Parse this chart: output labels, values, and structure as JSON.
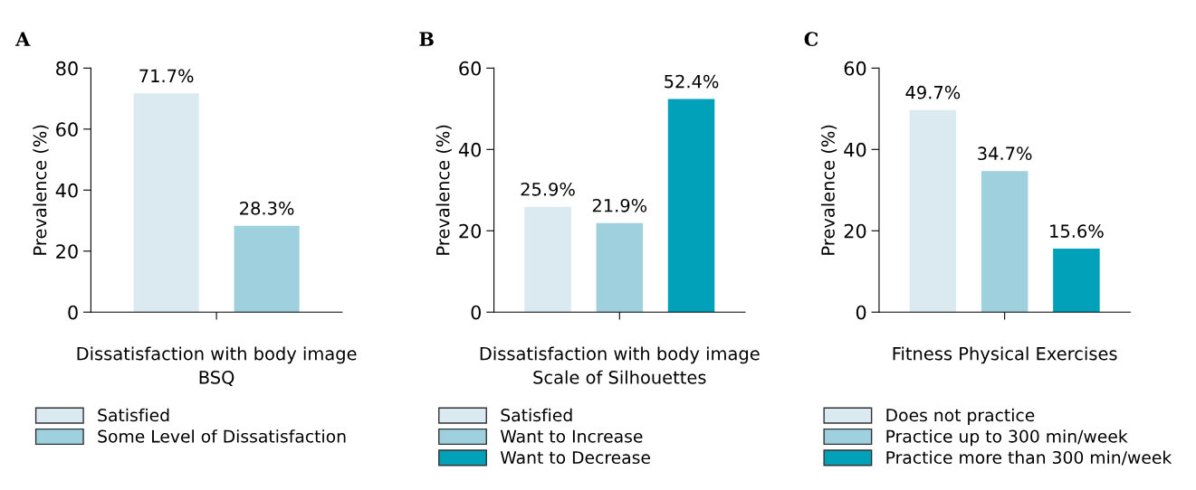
{
  "chart_data": [
    {
      "type": "bar",
      "title": "A",
      "xlabel": "Dissatisfaction with body image\nBSQ",
      "ylabel": "Prevalence (%)",
      "categories": [
        null
      ],
      "ylim": [
        0,
        80
      ],
      "yticks": [
        0,
        20,
        40,
        60,
        80
      ],
      "data_labels": true,
      "legend": "bottom",
      "grid": false,
      "series": [
        {
          "name": "Satisfied",
          "color": "#dbeaf0",
          "values": [
            71.7
          ],
          "value_labels": [
            "71.7%"
          ]
        },
        {
          "name": "Some Level of Dissatisfaction",
          "color": "#9fd0dd",
          "values": [
            28.3
          ],
          "value_labels": [
            "28.3%"
          ]
        }
      ]
    },
    {
      "type": "bar",
      "title": "B",
      "xlabel": "Dissatisfaction with body image\nScale of Silhouettes",
      "ylabel": "Prevalence (%)",
      "categories": [
        null
      ],
      "ylim": [
        0,
        60
      ],
      "yticks": [
        0,
        20,
        40,
        60
      ],
      "data_labels": true,
      "legend": "bottom",
      "grid": false,
      "series": [
        {
          "name": "Satisfied",
          "color": "#dbeaf0",
          "values": [
            25.9
          ],
          "value_labels": [
            "25.9%"
          ]
        },
        {
          "name": "Want to Increase",
          "color": "#9fd0dd",
          "values": [
            21.9
          ],
          "value_labels": [
            "21.9%"
          ]
        },
        {
          "name": "Want to Decrease",
          "color": "#00a1b9",
          "values": [
            52.4
          ],
          "value_labels": [
            "52.4%"
          ]
        }
      ]
    },
    {
      "type": "bar",
      "title": "C",
      "xlabel": "Fitness Physical Exercises",
      "ylabel": "Prevalence (%)",
      "categories": [
        null
      ],
      "ylim": [
        0,
        60
      ],
      "yticks": [
        0,
        20,
        40,
        60
      ],
      "data_labels": true,
      "legend": "bottom",
      "grid": false,
      "series": [
        {
          "name": "Does not practice",
          "color": "#dbeaf0",
          "values": [
            49.7
          ],
          "value_labels": [
            "49.7%"
          ]
        },
        {
          "name": "Practice up to 300 min/week",
          "color": "#9fd0dd",
          "values": [
            34.7
          ],
          "value_labels": [
            "34.7%"
          ]
        },
        {
          "name": "Practice more than 300 min/week",
          "color": "#00a1b9",
          "values": [
            15.6
          ],
          "value_labels": [
            "15.6%"
          ]
        }
      ]
    }
  ]
}
